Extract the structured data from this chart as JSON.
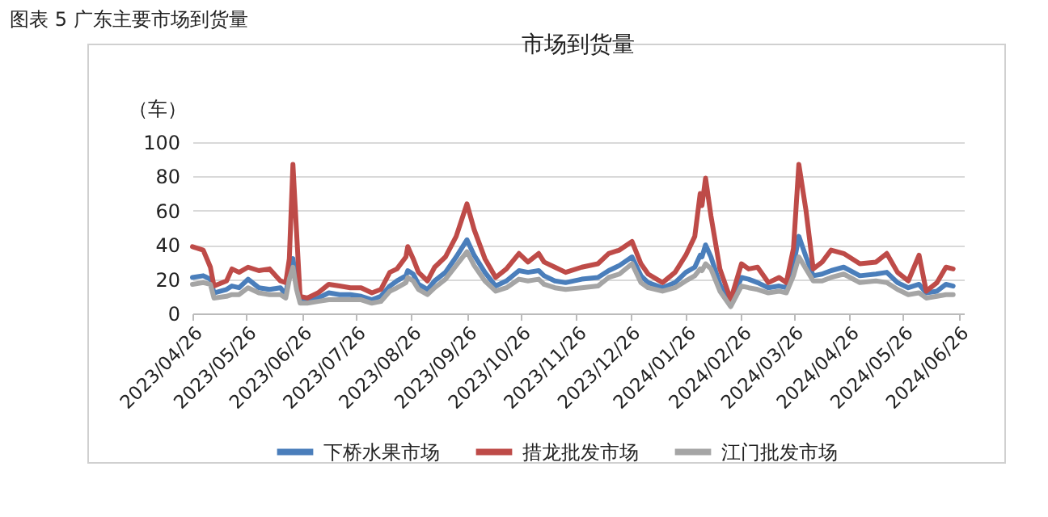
{
  "chart_data": {
    "type": "line",
    "title": "图表 5 广东主要市场到货量",
    "subtitle": "市场到货量",
    "ylabel": "（车）",
    "x": [
      "2023-04-26",
      "2023-05-02",
      "2023-05-06",
      "2023-05-08",
      "2023-05-15",
      "2023-05-18",
      "2023-05-22",
      "2023-05-27",
      "2023-06-02",
      "2023-06-08",
      "2023-06-14",
      "2023-06-17",
      "2023-06-19",
      "2023-06-21",
      "2023-06-23",
      "2023-06-25",
      "2023-06-29",
      "2023-07-05",
      "2023-07-11",
      "2023-07-17",
      "2023-07-23",
      "2023-07-29",
      "2023-08-04",
      "2023-08-09",
      "2023-08-14",
      "2023-08-18",
      "2023-08-23",
      "2023-08-24",
      "2023-08-27",
      "2023-08-30",
      "2023-09-04",
      "2023-09-08",
      "2023-09-14",
      "2023-09-20",
      "2023-09-26",
      "2023-09-30",
      "2023-10-06",
      "2023-10-12",
      "2023-10-18",
      "2023-10-25",
      "2023-10-30",
      "2023-11-05",
      "2023-11-08",
      "2023-11-14",
      "2023-11-20",
      "2023-11-29",
      "2023-12-08",
      "2023-12-14",
      "2023-12-20",
      "2023-12-27",
      "2024-01-01",
      "2024-01-05",
      "2024-01-13",
      "2024-01-20",
      "2024-01-26",
      "2024-01-31",
      "2024-02-03",
      "2024-02-04",
      "2024-02-06",
      "2024-02-09",
      "2024-02-14",
      "2024-02-20",
      "2024-02-26",
      "2024-03-01",
      "2024-03-06",
      "2024-03-12",
      "2024-03-18",
      "2024-03-22",
      "2024-03-26",
      "2024-03-29",
      "2024-04-02",
      "2024-04-06",
      "2024-04-11",
      "2024-04-16",
      "2024-04-23",
      "2024-05-02",
      "2024-05-11",
      "2024-05-17",
      "2024-05-23",
      "2024-05-29",
      "2024-06-04",
      "2024-06-08",
      "2024-06-14",
      "2024-06-19",
      "2024-06-23"
    ],
    "series": [
      {
        "name": "下桥水果市场",
        "color": "#4a7ebb",
        "values": [
          21,
          22,
          20,
          12,
          14,
          16,
          15,
          20,
          15,
          14,
          15,
          11,
          24,
          32,
          18,
          8,
          8,
          9,
          12,
          11,
          11,
          10,
          8,
          10,
          16,
          19,
          22,
          25,
          23,
          17,
          14,
          19,
          24,
          33,
          43,
          34,
          24,
          16,
          19,
          25,
          24,
          25,
          22,
          19,
          18,
          20,
          21,
          25,
          28,
          33,
          22,
          18,
          15,
          18,
          24,
          27,
          34,
          33,
          40,
          33,
          17,
          6,
          21,
          20,
          18,
          15,
          16,
          15,
          28,
          45,
          33,
          22,
          23,
          25,
          27,
          22,
          23,
          24,
          18,
          15,
          17,
          12,
          13,
          17,
          16
        ]
      },
      {
        "name": "措龙批发市场",
        "color": "#be4b48",
        "values": [
          39,
          37,
          27,
          16,
          19,
          26,
          24,
          27,
          25,
          26,
          19,
          18,
          32,
          87,
          48,
          10,
          9,
          12,
          17,
          16,
          15,
          15,
          12,
          14,
          24,
          26,
          33,
          39,
          32,
          24,
          19,
          27,
          33,
          45,
          64,
          49,
          32,
          21,
          26,
          35,
          30,
          35,
          30,
          27,
          24,
          27,
          29,
          35,
          37,
          42,
          29,
          23,
          18,
          24,
          34,
          45,
          70,
          63,
          79,
          57,
          26,
          8,
          29,
          26,
          27,
          18,
          21,
          18,
          38,
          87,
          60,
          26,
          30,
          37,
          35,
          29,
          30,
          35,
          24,
          19,
          34,
          13,
          18,
          27,
          26
        ]
      },
      {
        "name": "江门批发市场",
        "color": "#a5a5a5",
        "values": [
          17,
          18,
          17,
          9,
          10,
          11,
          11,
          15,
          12,
          11,
          11,
          9,
          20,
          27,
          14,
          6,
          6,
          7,
          8,
          8,
          8,
          8,
          6,
          7,
          13,
          15,
          18,
          21,
          19,
          14,
          11,
          15,
          20,
          28,
          36,
          28,
          19,
          13,
          15,
          20,
          19,
          20,
          17,
          15,
          14,
          15,
          16,
          21,
          23,
          29,
          18,
          15,
          13,
          15,
          19,
          22,
          26,
          25,
          29,
          26,
          13,
          4,
          16,
          15,
          14,
          12,
          13,
          12,
          22,
          33,
          26,
          19,
          19,
          21,
          23,
          18,
          19,
          18,
          14,
          11,
          12,
          9,
          10,
          11,
          11
        ]
      }
    ],
    "xlim": [
      "2023-04-26",
      "2024-06-29"
    ],
    "xticks": [
      {
        "value": "2023-04-26",
        "label": "2023/04/26"
      },
      {
        "value": "2023-05-26",
        "label": "2023/05/26"
      },
      {
        "value": "2023-06-26",
        "label": "2023/06/26"
      },
      {
        "value": "2023-07-26",
        "label": "2023/07/26"
      },
      {
        "value": "2023-08-26",
        "label": "2023/08/26"
      },
      {
        "value": "2023-09-26",
        "label": "2023/09/26"
      },
      {
        "value": "2023-10-26",
        "label": "2023/10/26"
      },
      {
        "value": "2023-11-26",
        "label": "2023/11/26"
      },
      {
        "value": "2023-12-26",
        "label": "2023/12/26"
      },
      {
        "value": "2024-01-26",
        "label": "2024/01/26"
      },
      {
        "value": "2024-02-26",
        "label": "2024/02/26"
      },
      {
        "value": "2024-03-26",
        "label": "2024/03/26"
      },
      {
        "value": "2024-04-26",
        "label": "2024/04/26"
      },
      {
        "value": "2024-05-26",
        "label": "2024/05/26"
      },
      {
        "value": "2024-06-26",
        "label": "2024/06/26"
      }
    ],
    "ylim": [
      0,
      100
    ],
    "yticks": [
      0,
      20,
      40,
      60,
      80,
      100
    ],
    "grid": "y",
    "legend": "bottom",
    "line_style": "solid",
    "marker": "none"
  }
}
